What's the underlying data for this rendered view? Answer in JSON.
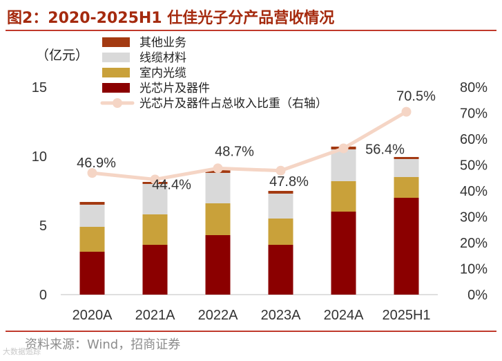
{
  "title": "图2：2020-2025H1 仕佳光子分产品营收情况",
  "source": "资料来源：Wind，招商证券",
  "watermark": "大数据追踪",
  "colors": {
    "title": "#a52a0e",
    "other": "#a33a12",
    "cable": "#d9d9d9",
    "indoor": "#c9a13a",
    "chip": "#8b0000",
    "ratio": "#f5d5c5",
    "rule": "#c0392b"
  },
  "chart_data": {
    "type": "bar",
    "stacked": true,
    "title": "2020-2025H1 仕佳光子分产品营收情况",
    "unit_label": "（亿元）",
    "categories": [
      "2020A",
      "2021A",
      "2022A",
      "2023A",
      "2024A",
      "2025H1"
    ],
    "y_left": {
      "range": [
        0,
        15
      ],
      "ticks": [
        "0",
        "5",
        "10",
        "15"
      ]
    },
    "y_right": {
      "range": [
        0,
        0.8
      ],
      "ticks": [
        "0%",
        "10%",
        "20%",
        "30%",
        "40%",
        "50%",
        "60%",
        "70%",
        "80%"
      ]
    },
    "series": [
      {
        "name": "光芯片及器件",
        "key": "chip",
        "values": [
          3.1,
          3.6,
          4.3,
          3.6,
          6.0,
          7.0
        ]
      },
      {
        "name": "室内光缆",
        "key": "indoor",
        "values": [
          1.8,
          2.2,
          2.3,
          1.9,
          2.2,
          1.5
        ]
      },
      {
        "name": "线缆材料",
        "key": "cable",
        "values": [
          1.6,
          2.2,
          2.2,
          1.8,
          2.3,
          1.3
        ]
      },
      {
        "name": "其他业务",
        "key": "other",
        "values": [
          0.2,
          0.15,
          0.2,
          0.2,
          0.2,
          0.15
        ]
      }
    ],
    "line": {
      "name": "光芯片及器件占总收入比重（右轴）",
      "values": [
        0.469,
        0.444,
        0.487,
        0.478,
        0.564,
        0.705
      ],
      "labels": [
        "46.9%",
        "44.4%",
        "48.7%",
        "47.8%",
        "56.4%",
        "70.5%"
      ]
    },
    "legend": [
      "其他业务",
      "线缆材料",
      "室内光缆",
      "光芯片及器件",
      "光芯片及器件占总收入比重（右轴）"
    ]
  }
}
